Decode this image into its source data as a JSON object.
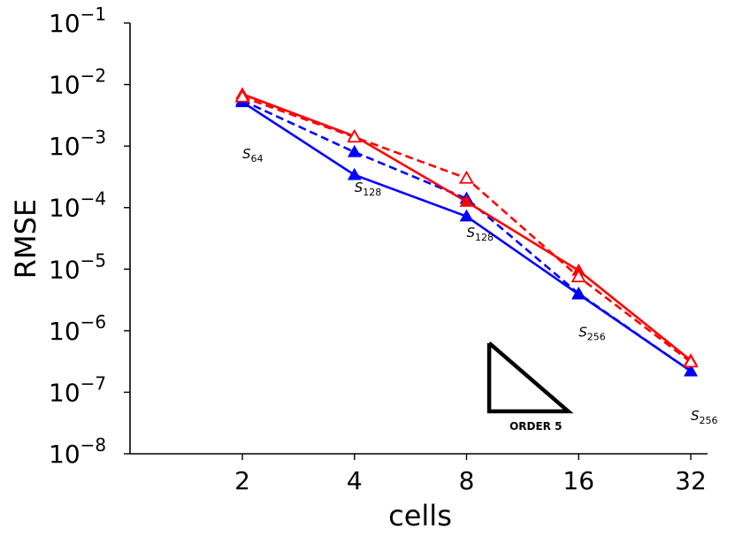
{
  "chart_data": {
    "type": "line",
    "title": "",
    "xlabel": "cells",
    "ylabel": "RMSE",
    "x_scale": "log2",
    "y_scale": "log10",
    "categories": [
      2,
      4,
      8,
      16,
      32
    ],
    "x_tick_labels": [
      "2",
      "4",
      "8",
      "16",
      "32"
    ],
    "y_ticks": [
      {
        "exp": -8,
        "label": "10",
        "sup": "−8"
      },
      {
        "exp": -7,
        "label": "10",
        "sup": "−7"
      },
      {
        "exp": -6,
        "label": "10",
        "sup": "−6"
      },
      {
        "exp": -5,
        "label": "10",
        "sup": "−5"
      },
      {
        "exp": -4,
        "label": "10",
        "sup": "−4"
      },
      {
        "exp": -3,
        "label": "10",
        "sup": "−3"
      },
      {
        "exp": -2,
        "label": "10",
        "sup": "−2"
      },
      {
        "exp": -1,
        "label": "10",
        "sup": "−1"
      }
    ],
    "ylim": [
      1e-08,
      0.1
    ],
    "series": [
      {
        "name": "blue-solid",
        "color": "#0000ff",
        "style": "solid",
        "marker": "filled-triangle",
        "x": [
          2,
          4,
          8,
          16,
          32
        ],
        "values": [
          0.0052,
          0.00034,
          7.2e-05,
          3.9e-06,
          2.2e-07
        ]
      },
      {
        "name": "blue-dashed",
        "color": "#0000ff",
        "style": "dashed",
        "marker": "filled-triangle",
        "x": [
          2,
          4,
          8,
          16,
          32
        ],
        "values": [
          0.0055,
          0.0008,
          0.00014,
          4e-06,
          2.2e-07
        ]
      },
      {
        "name": "red-solid",
        "color": "#ff0000",
        "style": "solid",
        "marker": "filled-triangle",
        "x": [
          2,
          4,
          8,
          16,
          32
        ],
        "values": [
          0.007,
          0.00145,
          0.000125,
          9.5e-06,
          3.3e-07
        ]
      },
      {
        "name": "red-dashed",
        "color": "#ff0000",
        "style": "dashed",
        "marker": "open-triangle",
        "x": [
          2,
          4,
          8,
          16,
          32
        ],
        "values": [
          0.0063,
          0.0014,
          0.0003,
          7.5e-06,
          3.1e-07
        ]
      }
    ],
    "annotations": [
      {
        "base": "S",
        "sub": "64",
        "x": 2,
        "y": 0.00063
      },
      {
        "base": "S",
        "sub": "128",
        "x": 4,
        "y": 0.00018
      },
      {
        "base": "S",
        "sub": "128",
        "x": 8,
        "y": 3.3e-05
      },
      {
        "base": "S",
        "sub": "256",
        "x": 16,
        "y": 8e-07
      },
      {
        "base": "S",
        "sub": "256",
        "x": 32,
        "y": 3.5e-08
      }
    ],
    "slope_triangle": {
      "label": "ORDER 5",
      "x_left": 9.2,
      "x_right": 15.0,
      "y_bottom": 4.9e-08,
      "y_top": 6.3e-07,
      "color": "#000000"
    }
  }
}
